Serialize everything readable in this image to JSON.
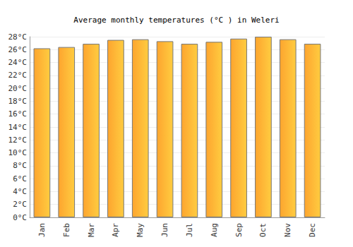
{
  "chart_data": {
    "type": "bar",
    "title": "Average monthly temperatures (°C ) in Weleri",
    "categories": [
      "Jan",
      "Feb",
      "Mar",
      "Apr",
      "May",
      "Jun",
      "Jul",
      "Aug",
      "Sep",
      "Oct",
      "Nov",
      "Dec"
    ],
    "values": [
      26.2,
      26.4,
      26.9,
      27.5,
      27.6,
      27.3,
      26.9,
      27.2,
      27.7,
      28.0,
      27.6,
      26.9
    ],
    "color": "#fda52f",
    "ylim": [
      0,
      28
    ],
    "yticks": [
      {
        "value": 0,
        "label": "0°C"
      },
      {
        "value": 2,
        "label": "2°C"
      },
      {
        "value": 4,
        "label": "4°C"
      },
      {
        "value": 6,
        "label": "6°C"
      },
      {
        "value": 8,
        "label": "8°C"
      },
      {
        "value": 10,
        "label": "10°C"
      },
      {
        "value": 12,
        "label": "12°C"
      },
      {
        "value": 14,
        "label": "14°C"
      },
      {
        "value": 16,
        "label": "16°C"
      },
      {
        "value": 18,
        "label": "18°C"
      },
      {
        "value": 20,
        "label": "20°C"
      },
      {
        "value": 22,
        "label": "22°C"
      },
      {
        "value": 24,
        "label": "24°C"
      },
      {
        "value": 26,
        "label": "26°C"
      },
      {
        "value": 28,
        "label": "28°C"
      }
    ],
    "grid": true
  }
}
